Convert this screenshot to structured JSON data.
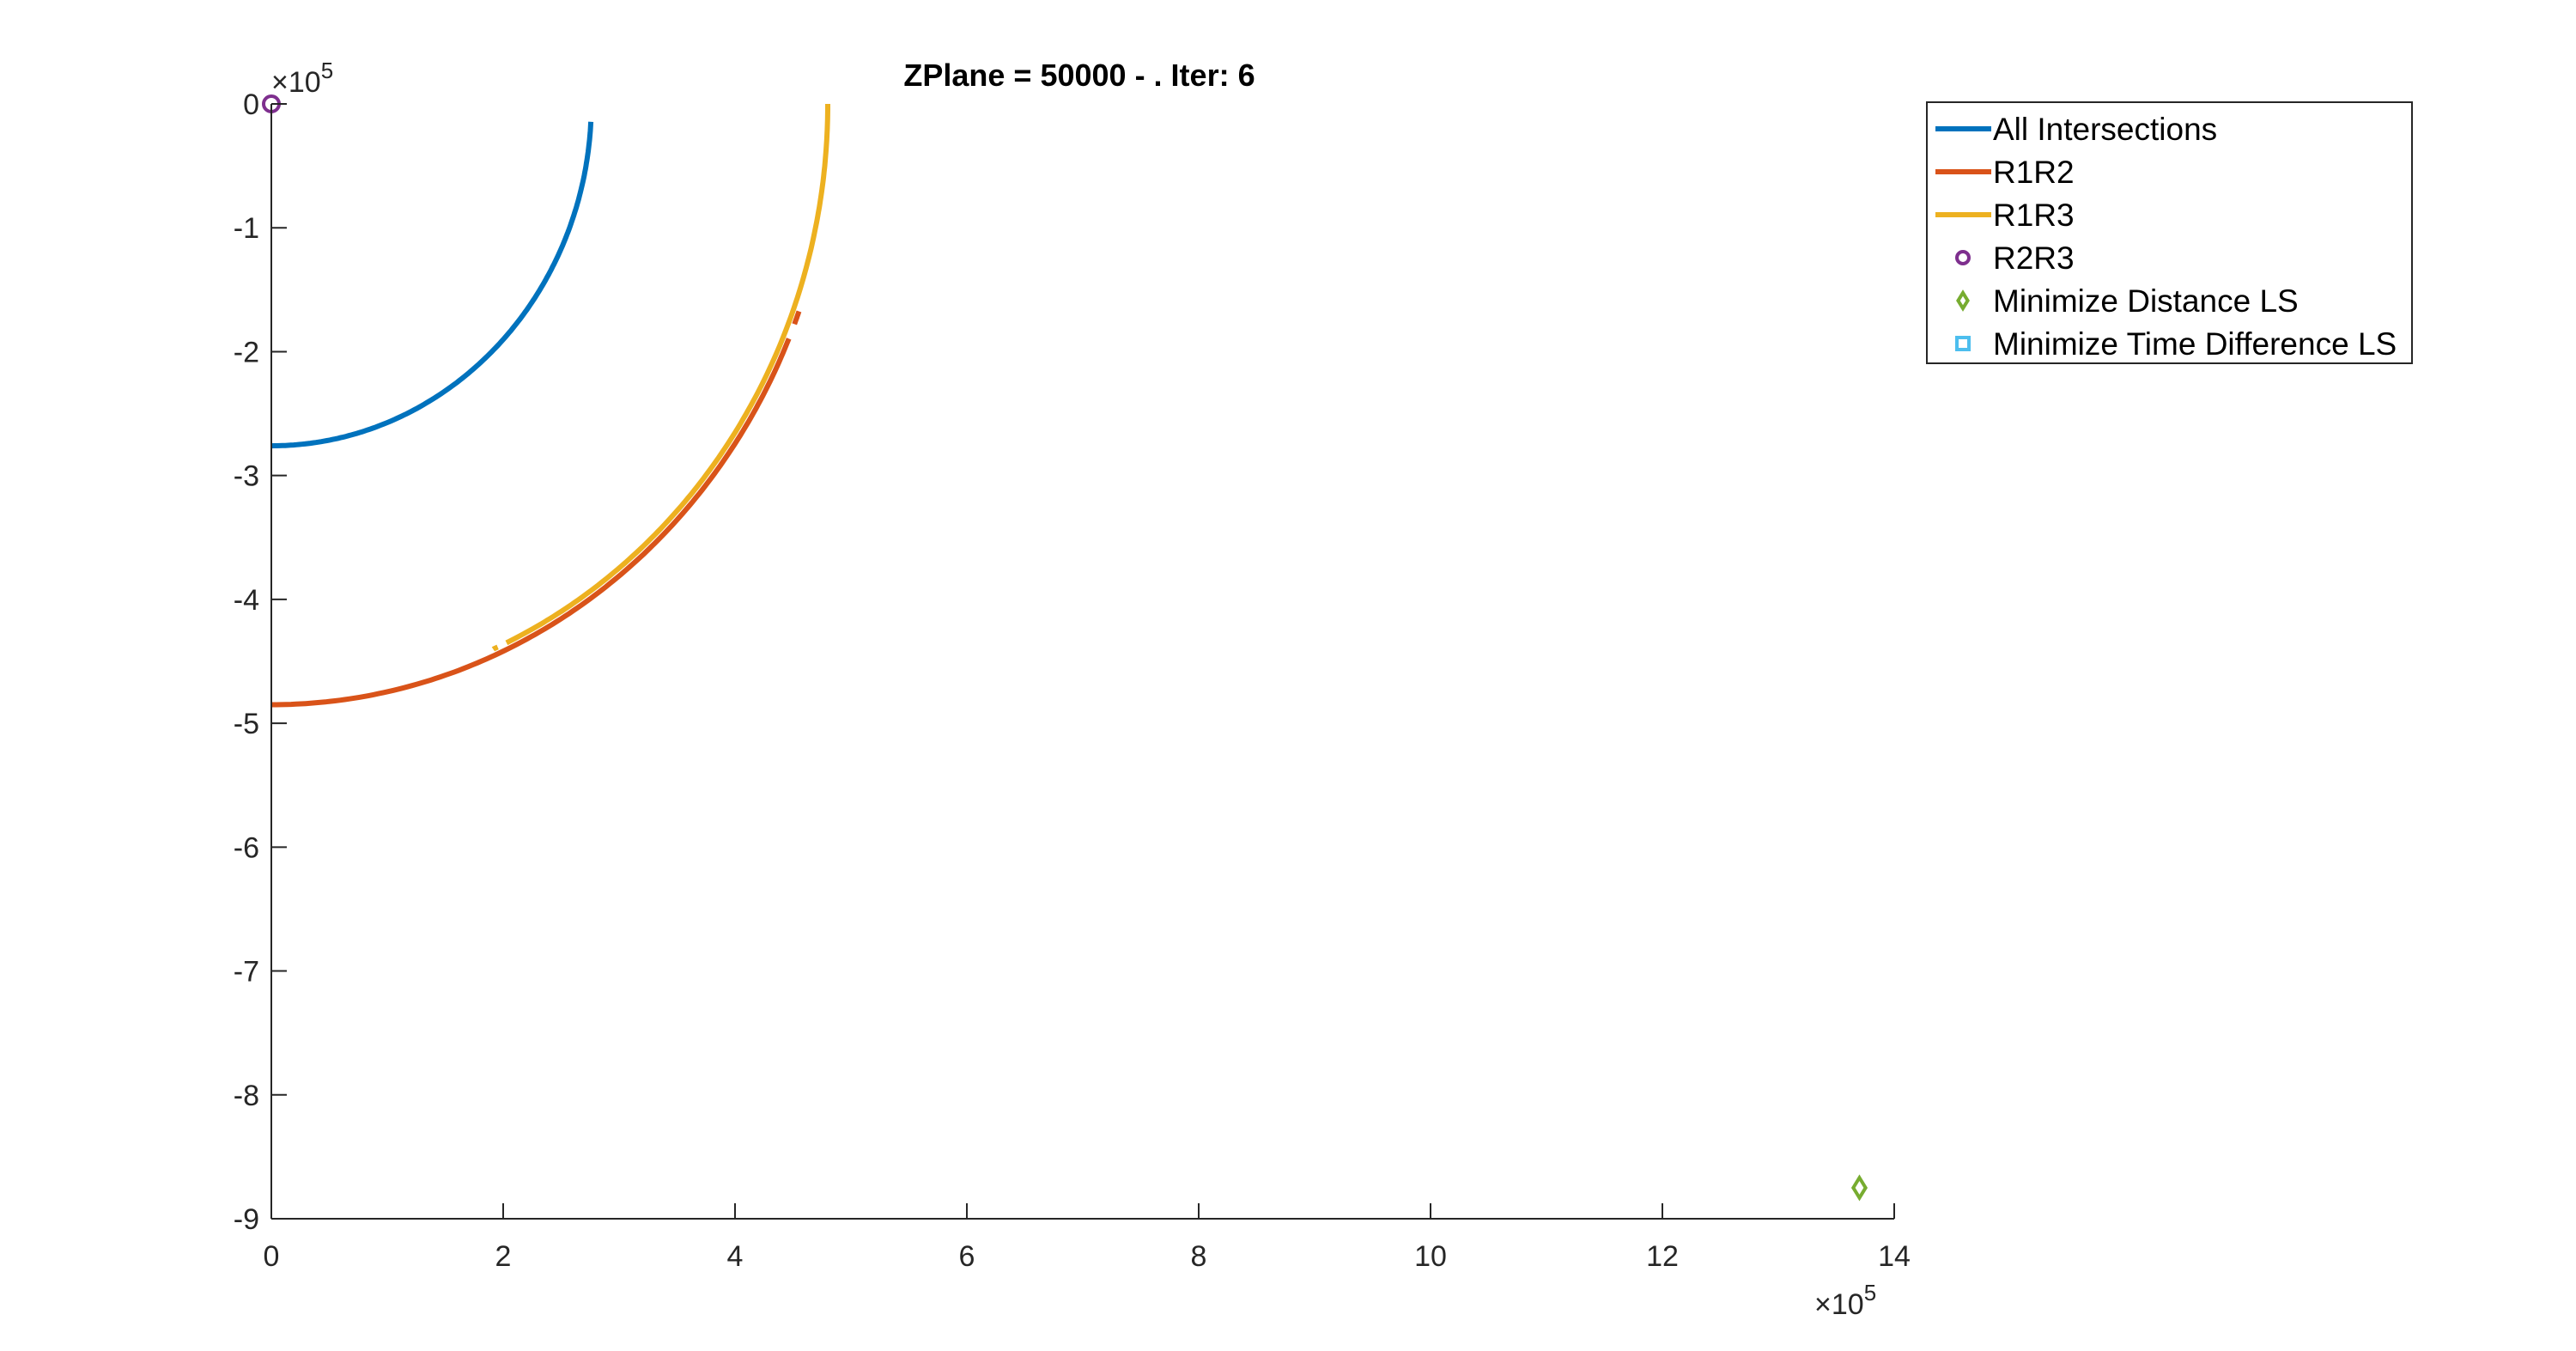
{
  "chart_data": {
    "type": "line",
    "title": "ZPlane = 50000 - . Iter: 6",
    "xlabel": "",
    "ylabel": "",
    "x_exponent": "5",
    "y_exponent": "5",
    "xlim": [
      0,
      14
    ],
    "ylim": [
      -9,
      0
    ],
    "x_ticks": [
      0,
      2,
      4,
      6,
      8,
      10,
      12,
      14
    ],
    "x_tick_labels": [
      "0",
      "2",
      "4",
      "6",
      "8",
      "10",
      "12",
      "14"
    ],
    "y_ticks": [
      0,
      -1,
      -2,
      -3,
      -4,
      -5,
      -6,
      -7,
      -8,
      -9
    ],
    "y_tick_labels": [
      "0",
      "-1",
      "-2",
      "-3",
      "-4",
      "-5",
      "-6",
      "-7",
      "-8",
      "-9"
    ],
    "grid": false,
    "legend_position": "top-right",
    "series": [
      {
        "name": "All Intersections",
        "kind": "line",
        "color": "#0072BD",
        "arcs": [
          {
            "radius": 2.76,
            "start_deg": 270,
            "end_deg": 357
          }
        ]
      },
      {
        "name": "R1R2",
        "kind": "line",
        "color": "#D95319",
        "arcs": [
          {
            "radius": 4.85,
            "start_deg": 270,
            "end_deg": 337
          },
          {
            "radius": 4.85,
            "start_deg": 338.5,
            "end_deg": 339.8
          }
        ]
      },
      {
        "name": "R1R3",
        "kind": "line",
        "color": "#EDB120",
        "arcs": [
          {
            "radius": 4.8,
            "start_deg": 293.5,
            "end_deg": 294
          },
          {
            "radius": 4.8,
            "start_deg": 295,
            "end_deg": 360
          }
        ]
      },
      {
        "name": "R2R3",
        "kind": "marker",
        "marker": "circle",
        "color": "#7E2F8E",
        "points": [
          {
            "x": 0,
            "y": 0
          }
        ]
      },
      {
        "name": "Minimize Distance LS",
        "kind": "marker",
        "marker": "diamond",
        "color": "#77AC30",
        "points": [
          {
            "x": 13.7,
            "y": -8.75
          }
        ]
      },
      {
        "name": "Minimize Time Difference LS",
        "kind": "marker",
        "marker": "square",
        "color": "#4DBEEE",
        "points": []
      }
    ]
  }
}
